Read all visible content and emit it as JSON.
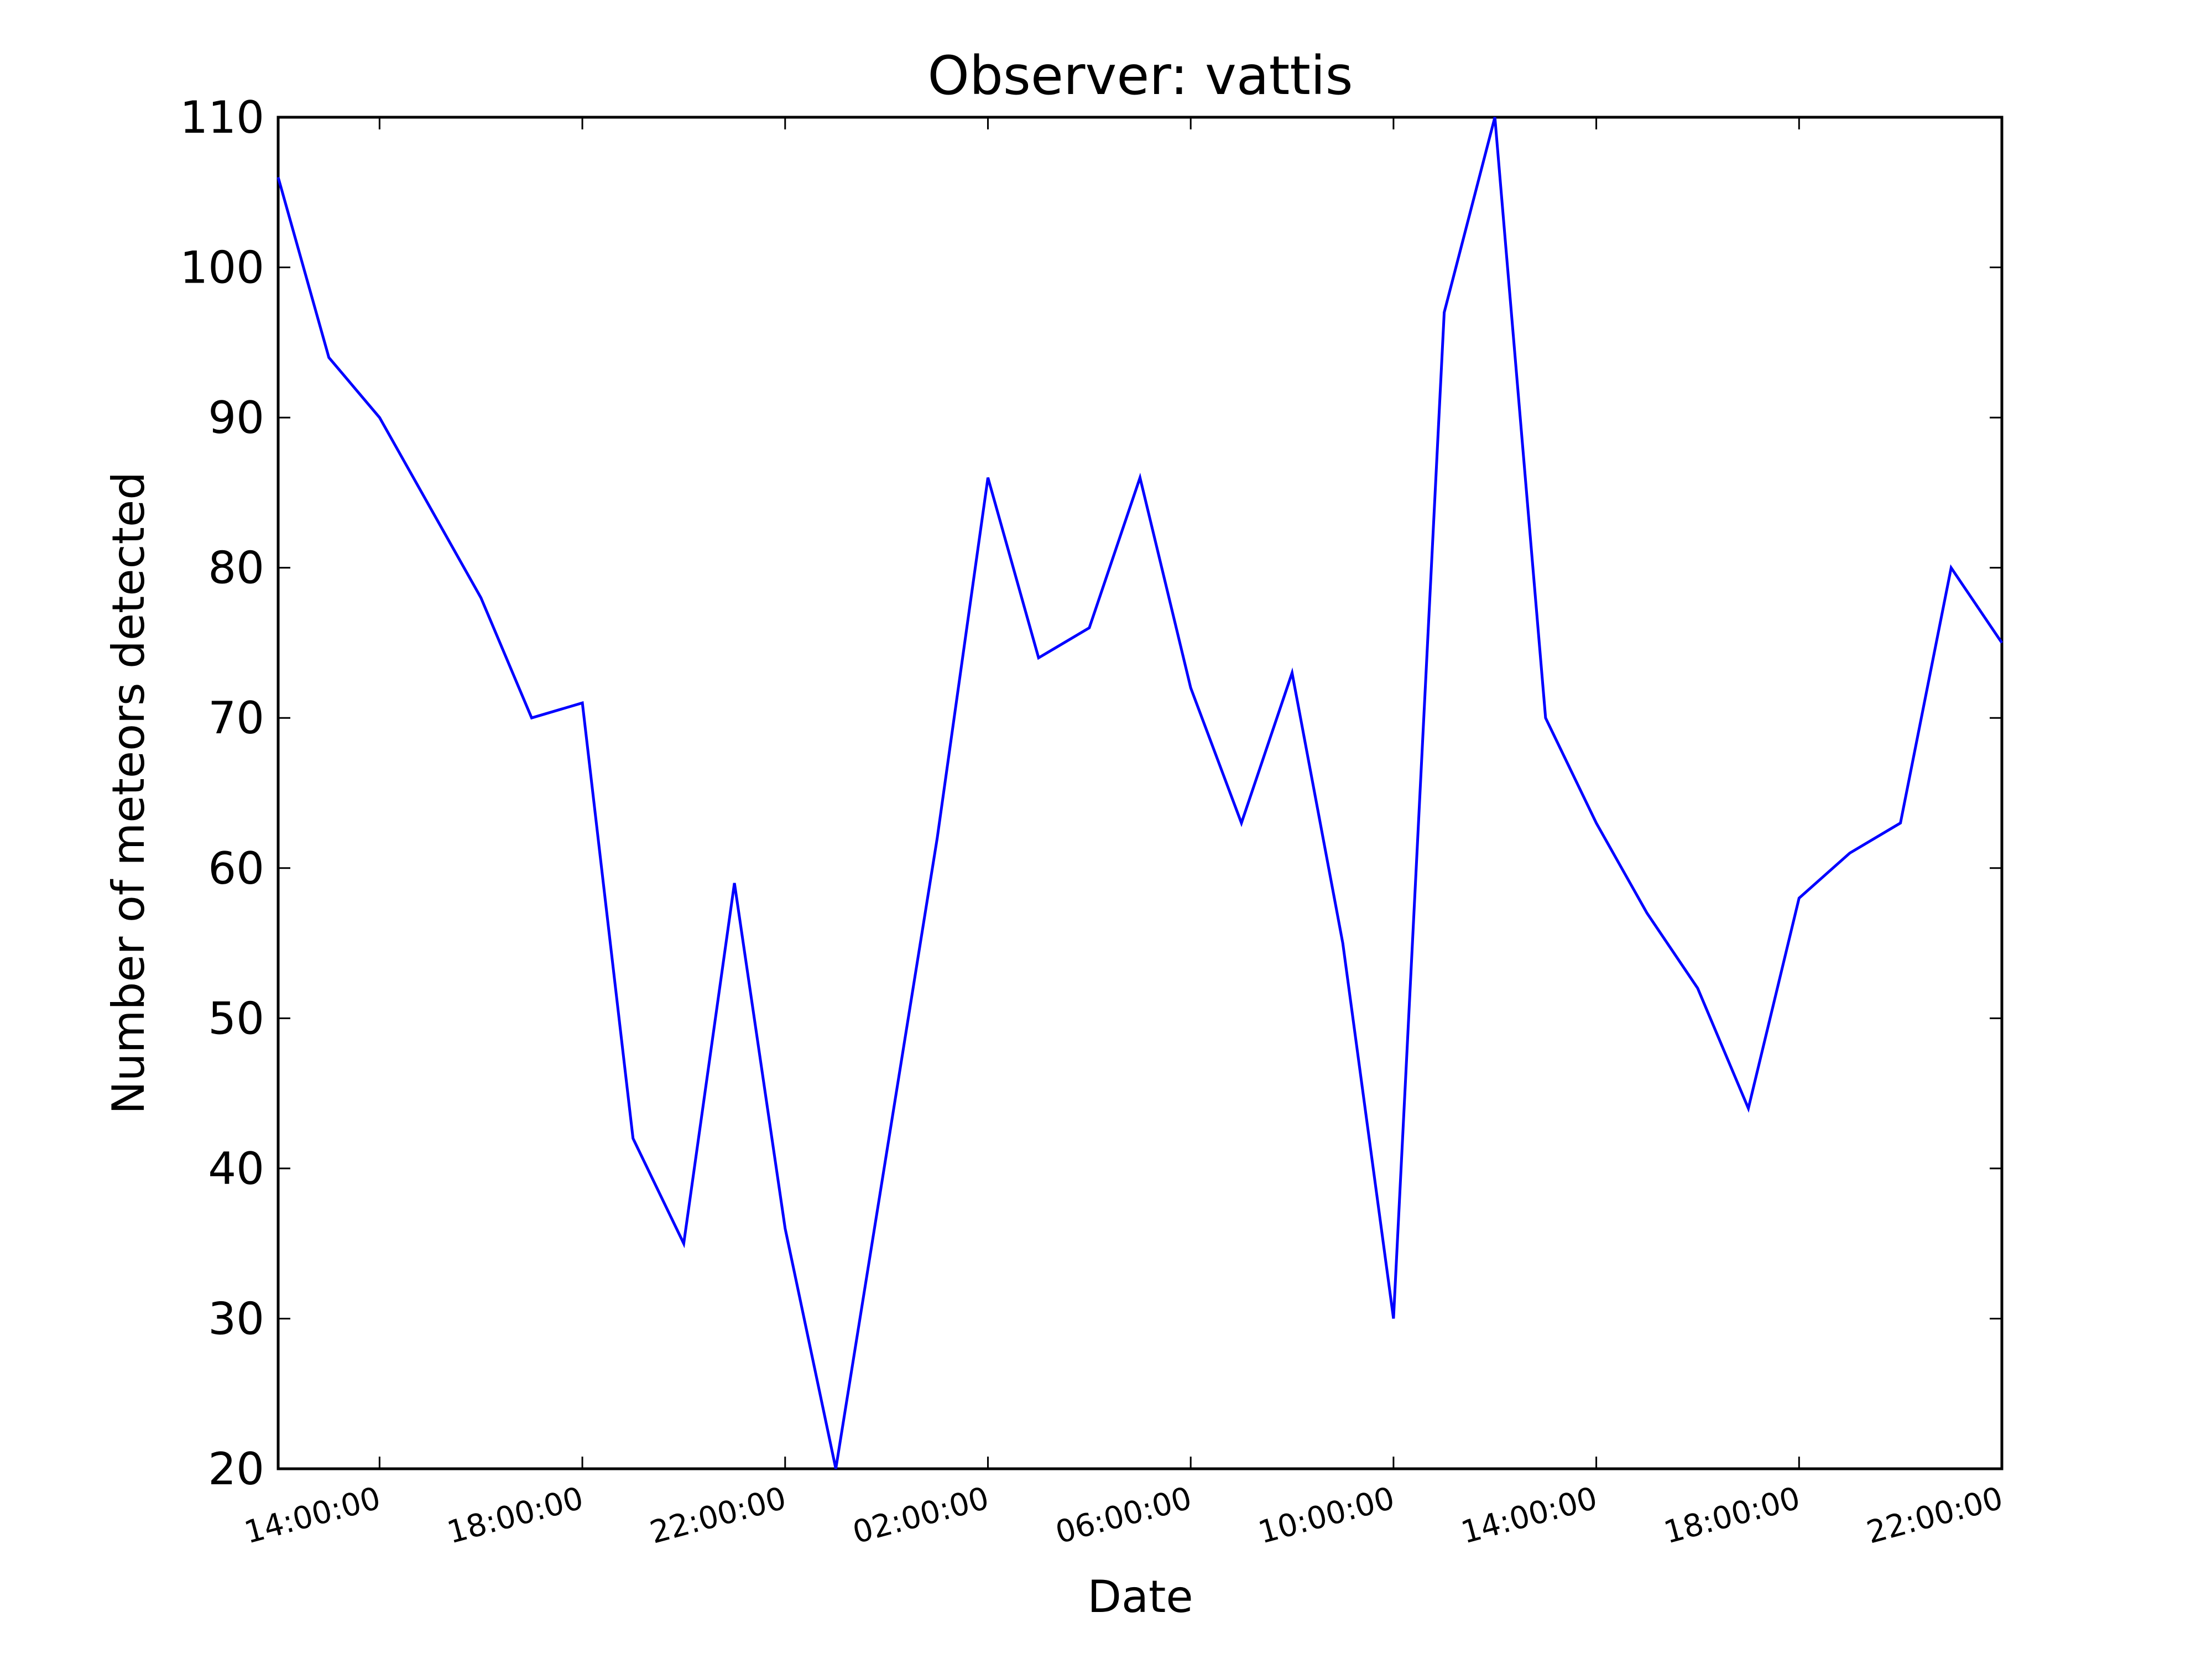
{
  "chart_data": {
    "type": "line",
    "title": "Observer: vattis",
    "xlabel": "Date",
    "ylabel": "Number of meteors detected",
    "x_tick_labels": [
      "14:00:00",
      "18:00:00",
      "22:00:00",
      "02:00:00",
      "06:00:00",
      "10:00:00",
      "14:00:00",
      "18:00:00",
      "22:00:00"
    ],
    "y_ticks": [
      20,
      30,
      40,
      50,
      60,
      70,
      80,
      90,
      100,
      110
    ],
    "ylim": [
      20,
      110
    ],
    "xlim_hours": [
      12,
      46
    ],
    "grid": false,
    "legend": "none",
    "series": [
      {
        "color": "#0000ff",
        "x_hours": [
          12,
          13,
          14,
          15,
          16,
          17,
          18,
          19,
          20,
          21,
          22,
          23,
          24,
          25,
          26,
          27,
          28,
          29,
          30,
          31,
          32,
          33,
          34,
          35,
          36,
          37,
          38,
          39,
          40,
          41,
          42,
          43,
          44,
          45,
          46
        ],
        "values": [
          106,
          94,
          90,
          84,
          78,
          70,
          71,
          42,
          35,
          59,
          36,
          20,
          41,
          62,
          86,
          74,
          76,
          86,
          72,
          63,
          73,
          55,
          30,
          97,
          110,
          70,
          63,
          57,
          52,
          44,
          58,
          61,
          63,
          80,
          75
        ]
      }
    ]
  }
}
